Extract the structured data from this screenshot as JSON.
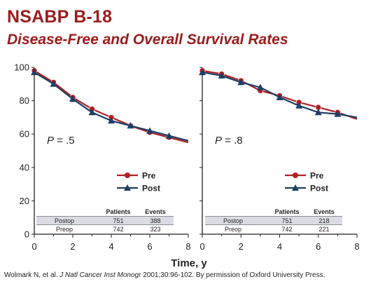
{
  "title": "NSABP B-18",
  "subtitle": "Disease-Free and Overall Survival Rates",
  "xlabel": "Time, y",
  "citation": {
    "prefix": "Wolmark N, et al. ",
    "journal": "J Natl Cancer Inst Monogr",
    "suffix": " 2001;30:96-102. By permission of Oxford University Press."
  },
  "colors": {
    "pre": "#b11f24",
    "post": "#1c3f66",
    "title": "#9b1c1c",
    "table_shade": "#d9dde3"
  },
  "chart_data": [
    {
      "type": "line",
      "xlim": [
        0,
        8
      ],
      "ylim": [
        0,
        100
      ],
      "xticks": [
        "0",
        "2",
        "4",
        "6",
        "8"
      ],
      "yticks": [
        "0",
        "20",
        "40",
        "60",
        "80",
        "100"
      ],
      "xlabel": "Time, y",
      "annotation": {
        "p_label": "P",
        "p_value": " = .5"
      },
      "legend": "center-right",
      "series": [
        {
          "name": "Pre",
          "x": [
            0,
            1,
            2,
            3,
            4,
            5,
            6,
            7,
            8
          ],
          "y": [
            98,
            91,
            82,
            75,
            70,
            65,
            61,
            58,
            55
          ]
        },
        {
          "name": "Post",
          "x": [
            0,
            1,
            2,
            3,
            4,
            5,
            6,
            7,
            8
          ],
          "y": [
            97,
            90,
            81,
            73,
            68,
            65,
            62,
            59,
            56
          ]
        }
      ],
      "table": {
        "headers": [
          "",
          "Patients",
          "Events"
        ],
        "rows": [
          [
            "Postop",
            "751",
            "388"
          ],
          [
            "Preop",
            "742",
            "323"
          ]
        ]
      }
    },
    {
      "type": "line",
      "xlim": [
        0,
        8
      ],
      "ylim": [
        0,
        100
      ],
      "xticks": [
        "0",
        "2",
        "4",
        "6",
        "8"
      ],
      "yticks": [],
      "xlabel": "Time, y",
      "annotation": {
        "p_label": "P",
        "p_value": " = .8"
      },
      "legend": "center-right",
      "series": [
        {
          "name": "Pre",
          "x": [
            0,
            1,
            2,
            3,
            4,
            5,
            6,
            7,
            8
          ],
          "y": [
            98,
            96,
            92,
            86,
            83,
            79,
            76,
            73,
            69
          ]
        },
        {
          "name": "Post",
          "x": [
            0,
            1,
            2,
            3,
            4,
            5,
            6,
            7,
            8
          ],
          "y": [
            97,
            95,
            91,
            88,
            82,
            77,
            73,
            72,
            70
          ]
        }
      ],
      "table": {
        "headers": [
          "",
          "Patients",
          "Events"
        ],
        "rows": [
          [
            "Postop",
            "751",
            "218"
          ],
          [
            "Preop",
            "742",
            "221"
          ]
        ]
      }
    }
  ]
}
